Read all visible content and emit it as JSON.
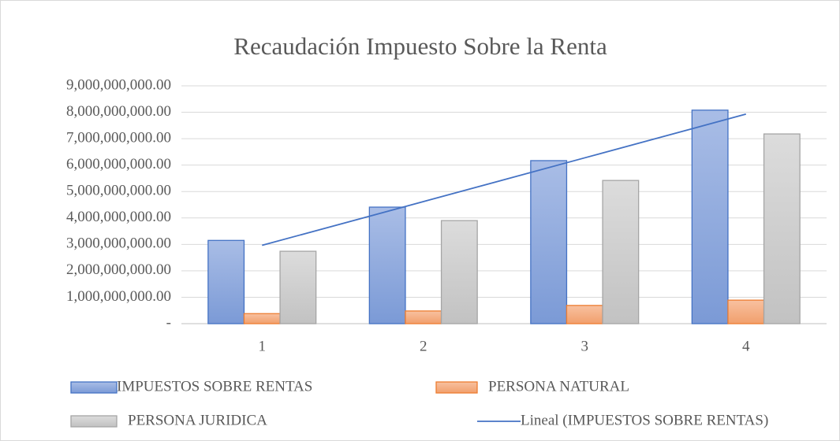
{
  "chart_data": {
    "type": "bar",
    "title": "Recaudación Impuesto Sobre la Renta",
    "categories": [
      "1",
      "2",
      "3",
      "4"
    ],
    "series": [
      {
        "name": "IMPUESTOS SOBRE RENTAS",
        "color": "#4472c4",
        "values": [
          3150000000,
          4410000000,
          6170000000,
          8080000000
        ]
      },
      {
        "name": "PERSONA NATURAL",
        "color": "#ed7d31",
        "values": [
          380000000,
          480000000,
          690000000,
          890000000
        ]
      },
      {
        "name": "PERSONA JURIDICA",
        "color": "#a5a5a5",
        "values": [
          2740000000,
          3900000000,
          5420000000,
          7180000000
        ]
      },
      {
        "name": "Lineal (IMPUESTOS SOBRE RENTAS)",
        "type": "line",
        "color": "#4472c4",
        "values": [
          2965000000,
          4620000000,
          6275000000,
          7930000000
        ]
      }
    ],
    "ylim": [
      0,
      9000000000
    ],
    "yticks": [
      {
        "value": 0,
        "label": "-"
      },
      {
        "value": 1000000000,
        "label": "1,000,000,000.00"
      },
      {
        "value": 2000000000,
        "label": "2,000,000,000.00"
      },
      {
        "value": 3000000000,
        "label": "3,000,000,000.00"
      },
      {
        "value": 4000000000,
        "label": "4,000,000,000.00"
      },
      {
        "value": 5000000000,
        "label": "5,000,000,000.00"
      },
      {
        "value": 6000000000,
        "label": "6,000,000,000.00"
      },
      {
        "value": 7000000000,
        "label": "7,000,000,000.00"
      },
      {
        "value": 8000000000,
        "label": "8,000,000,000.00"
      },
      {
        "value": 9000000000,
        "label": "9,000,000,000.00"
      }
    ],
    "grid": true,
    "legend": "bottom"
  }
}
